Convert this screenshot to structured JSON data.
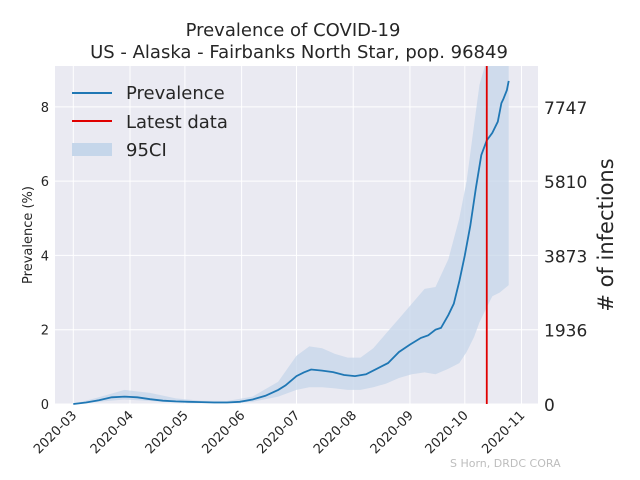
{
  "chart_data": {
    "type": "line",
    "title": "Prevalence of COVID-19",
    "subtitle": "US - Alaska - Fairbanks North Star, pop. 96849",
    "ylabel": "Prevalence (%)",
    "ylabel_right": "# of infections",
    "credit": "S Horn, DRDC CORA",
    "ylim": [
      0,
      9.1
    ],
    "xlim": [
      "2020-02-20",
      "2020-11-10"
    ],
    "x_ticks": [
      "2020-03",
      "2020-04",
      "2020-05",
      "2020-06",
      "2020-07",
      "2020-08",
      "2020-09",
      "2020-10",
      "2020-11"
    ],
    "y_ticks": [
      0,
      2,
      4,
      6,
      8
    ],
    "y_right_ticks": [
      {
        "label": "0",
        "value": 0
      },
      {
        "label": "1936",
        "value": 2
      },
      {
        "label": "3873",
        "value": 4
      },
      {
        "label": "5810",
        "value": 6
      },
      {
        "label": "7747",
        "value": 8
      }
    ],
    "grid": true,
    "legend": {
      "position": "top-left",
      "entries": [
        {
          "label": "Prevalence",
          "color": "#1f77b4",
          "kind": "line"
        },
        {
          "label": "Latest data",
          "color": "#e00000",
          "kind": "line"
        },
        {
          "label": "95CI",
          "color": "#c5d6ea",
          "kind": "patch"
        }
      ]
    },
    "latest_data_date": "2020-10-13",
    "series": [
      {
        "name": "Prevalence",
        "color": "#1f77b4",
        "x": [
          "2020-03-01",
          "2020-03-08",
          "2020-03-15",
          "2020-03-22",
          "2020-03-29",
          "2020-04-05",
          "2020-04-12",
          "2020-04-19",
          "2020-04-26",
          "2020-05-03",
          "2020-05-10",
          "2020-05-17",
          "2020-05-24",
          "2020-05-31",
          "2020-06-07",
          "2020-06-14",
          "2020-06-21",
          "2020-06-25",
          "2020-07-01",
          "2020-07-05",
          "2020-07-09",
          "2020-07-15",
          "2020-07-21",
          "2020-07-27",
          "2020-08-02",
          "2020-08-08",
          "2020-08-14",
          "2020-08-20",
          "2020-08-26",
          "2020-09-01",
          "2020-09-07",
          "2020-09-11",
          "2020-09-15",
          "2020-09-18",
          "2020-09-22",
          "2020-09-25",
          "2020-09-28",
          "2020-10-01",
          "2020-10-04",
          "2020-10-07",
          "2020-10-10",
          "2020-10-13",
          "2020-10-16",
          "2020-10-19",
          "2020-10-21",
          "2020-10-22",
          "2020-10-24",
          "2020-10-25"
        ],
        "values": [
          0.0,
          0.04,
          0.1,
          0.18,
          0.2,
          0.18,
          0.13,
          0.09,
          0.07,
          0.06,
          0.05,
          0.04,
          0.04,
          0.06,
          0.12,
          0.22,
          0.38,
          0.5,
          0.75,
          0.85,
          0.93,
          0.9,
          0.86,
          0.78,
          0.75,
          0.8,
          0.95,
          1.1,
          1.4,
          1.6,
          1.78,
          1.85,
          2.0,
          2.05,
          2.4,
          2.7,
          3.3,
          4.0,
          4.8,
          5.8,
          6.7,
          7.1,
          7.3,
          7.6,
          8.1,
          8.2,
          8.45,
          8.7
        ]
      }
    ],
    "ci95": {
      "x": [
        "2020-03-01",
        "2020-03-15",
        "2020-03-29",
        "2020-04-12",
        "2020-04-26",
        "2020-05-10",
        "2020-05-24",
        "2020-06-07",
        "2020-06-21",
        "2020-07-01",
        "2020-07-08",
        "2020-07-15",
        "2020-07-22",
        "2020-07-29",
        "2020-08-05",
        "2020-08-12",
        "2020-08-19",
        "2020-08-26",
        "2020-09-02",
        "2020-09-09",
        "2020-09-15",
        "2020-09-22",
        "2020-09-28",
        "2020-10-02",
        "2020-10-06",
        "2020-10-09",
        "2020-10-12",
        "2020-10-16",
        "2020-10-20",
        "2020-10-25"
      ],
      "lower": [
        0.0,
        0.06,
        0.12,
        0.08,
        0.04,
        0.03,
        0.03,
        0.06,
        0.2,
        0.38,
        0.45,
        0.45,
        0.42,
        0.38,
        0.38,
        0.45,
        0.55,
        0.7,
        0.8,
        0.85,
        0.8,
        0.95,
        1.1,
        1.4,
        1.8,
        2.2,
        2.5,
        2.9,
        3.0,
        3.2
      ],
      "upper": [
        0.0,
        0.18,
        0.38,
        0.3,
        0.15,
        0.09,
        0.08,
        0.2,
        0.6,
        1.3,
        1.55,
        1.5,
        1.35,
        1.25,
        1.25,
        1.5,
        1.9,
        2.3,
        2.7,
        3.1,
        3.15,
        3.9,
        5.0,
        6.0,
        7.5,
        8.6,
        9.1,
        9.1,
        9.1,
        9.1
      ]
    }
  }
}
